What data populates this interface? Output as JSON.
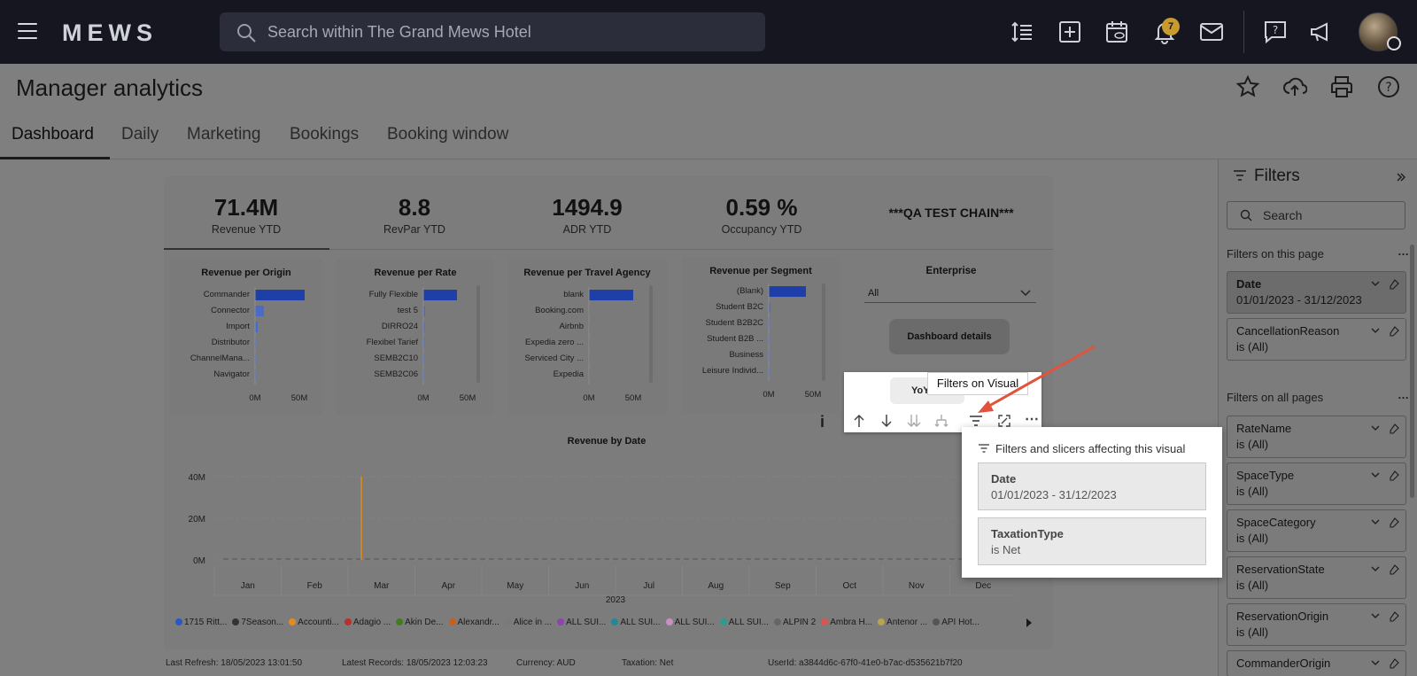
{
  "topbar": {
    "logo": "MEWS",
    "search_placeholder": "Search within The Grand Mews Hotel",
    "notification_count": "7"
  },
  "page": {
    "title": "Manager analytics",
    "tabs": [
      "Dashboard",
      "Daily",
      "Marketing",
      "Bookings",
      "Booking window"
    ]
  },
  "kpis": [
    {
      "value": "71.4M",
      "label": "Revenue YTD"
    },
    {
      "value": "8.8",
      "label": "RevPar YTD"
    },
    {
      "value": "1494.9",
      "label": "ADR YTD"
    },
    {
      "value": "0.59 %",
      "label": "Occupancy YTD"
    }
  ],
  "chain_name": "***QA TEST CHAIN***",
  "enterprise": {
    "title": "Enterprise",
    "selected": "All",
    "details_button": "Dashboard details"
  },
  "yoy_button": "YoY",
  "visual_header": {
    "tooltip": "Filters on Visual",
    "info": "i"
  },
  "chart_data": [
    {
      "type": "bar",
      "orientation": "horizontal",
      "title": "Revenue per Origin",
      "categories": [
        "Commander",
        "Connector",
        "Import",
        "Distributor",
        "ChannelMana...",
        "Navigator"
      ],
      "values": [
        56,
        10,
        3,
        1,
        0.5,
        0.3
      ],
      "xticks": [
        "0M",
        "50M"
      ],
      "xlim": [
        0,
        60
      ]
    },
    {
      "type": "bar",
      "orientation": "horizontal",
      "title": "Revenue per Rate",
      "categories": [
        "Fully Flexible",
        "test 5",
        "DIRRO24",
        "Flexibel Tarief",
        "SEMB2C10",
        "SEMB2C06"
      ],
      "values": [
        38,
        2,
        1.5,
        1.2,
        1,
        0.8
      ],
      "xticks": [
        "0M",
        "50M"
      ],
      "xlim": [
        0,
        60
      ]
    },
    {
      "type": "bar",
      "orientation": "horizontal",
      "title": "Revenue per Travel Agency",
      "categories": [
        "blank",
        "Booking.com",
        "Airbnb",
        "Expedia zero ...",
        "Serviced City ...",
        "Expedia"
      ],
      "values": [
        50,
        0.6,
        0.4,
        0.3,
        0.2,
        0.1
      ],
      "xticks": [
        "0M",
        "50M"
      ],
      "xlim": [
        0,
        60
      ]
    },
    {
      "type": "bar",
      "orientation": "horizontal",
      "title": "Revenue per Segment",
      "categories": [
        "(Blank)",
        "Student B2C",
        "Student B2B2C",
        "Student B2B ...",
        "Business",
        "Leisure Individ..."
      ],
      "values": [
        42,
        2,
        1,
        0.6,
        0.3,
        0.2
      ],
      "xticks": [
        "0M",
        "50M"
      ],
      "xlim": [
        0,
        60
      ]
    },
    {
      "type": "line",
      "title": "Revenue by Date",
      "xlabel": "2023",
      "x": [
        "Jan",
        "Feb",
        "Mar",
        "Apr",
        "May",
        "Jun",
        "Jul",
        "Aug",
        "Sep",
        "Oct",
        "Nov",
        "Dec"
      ],
      "yticks": [
        "0M",
        "20M",
        "40M"
      ],
      "ylim": [
        0,
        40
      ],
      "spike": {
        "month": "Mar",
        "value": 40
      },
      "legend": [
        "1715 Ritt...",
        "7Season...",
        "Accounti...",
        "Adagio ...",
        "Akin De...",
        "Alexandr...",
        "Alice in ...",
        "ALL SUI...",
        "ALL SUI...",
        "ALL SUI...",
        "ALL SUI...",
        "ALPIN 2",
        "Ambra H...",
        "Antenor ...",
        "API Hot..."
      ],
      "legend_colors": [
        "#2b59c3",
        "#333333",
        "#e58b1c",
        "#b9312c",
        "#3f7d1e",
        "#c8601a",
        "#7a7a7a",
        "#8e44ad",
        "#1f8a96",
        "#c98fc4",
        "#2a9d8f",
        "#666666",
        "#d9534f",
        "#b8a44a",
        "#555555"
      ]
    }
  ],
  "footer": {
    "last_refresh": "Last Refresh: 18/05/2023 13:01:50",
    "latest_records": "Latest Records: 18/05/2023 12:03:23",
    "currency": "Currency: AUD",
    "taxation": "Taxation: Net",
    "user_id": "UserId: a3844d6c-67f0-41e0-b7ac-d535621b7f20"
  },
  "filters_pane": {
    "title": "Filters",
    "search_placeholder": "Search",
    "this_page_label": "Filters on this page",
    "all_pages_label": "Filters on all pages",
    "this_page": [
      {
        "name": "Date",
        "state": "01/01/2023 - 31/12/2023"
      },
      {
        "name": "CancellationReason",
        "state": "is (All)"
      }
    ],
    "all_pages": [
      {
        "name": "RateName",
        "state": "is (All)"
      },
      {
        "name": "SpaceType",
        "state": "is (All)"
      },
      {
        "name": "SpaceCategory",
        "state": "is (All)"
      },
      {
        "name": "ReservationState",
        "state": "is (All)"
      },
      {
        "name": "ReservationOrigin",
        "state": "is (All)"
      },
      {
        "name": "CommanderOrigin",
        "state": ""
      }
    ]
  },
  "visual_filters_popup": {
    "heading": "Filters and slicers affecting this visual",
    "items": [
      {
        "name": "Date",
        "state": "01/01/2023 - 31/12/2023"
      },
      {
        "name": "TaxationType",
        "state": "is Net"
      }
    ]
  }
}
